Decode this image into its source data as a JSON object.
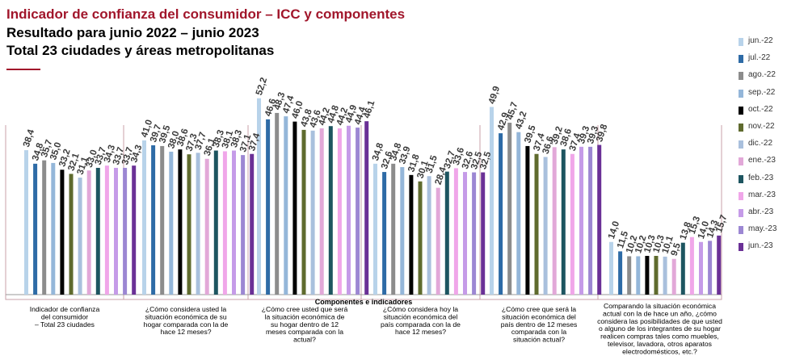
{
  "header": {
    "title": "Indicador de confianza del consumidor – ICC y componentes",
    "subtitle1": "Resultado para junio 2022 – junio 2023",
    "subtitle2": "Total 23 ciudades y áreas metropolitanas"
  },
  "chart_data": {
    "type": "bar",
    "xlabel": "Componentes e indicadores",
    "ylim": [
      0,
      55
    ],
    "legend_position": "right",
    "grid": false,
    "categories": [
      "Indicador de confianza del consumidor – Total 23 ciudades",
      "¿Cómo considera usted la situación económica de su hogar comparada con la de hace 12 meses?",
      "¿Cómo cree usted que será la situación económica de su hogar dentro de 12 meses comparada con la actual?",
      "¿Cómo considera hoy la situación económica del país comparada con la de hace 12 meses?",
      "¿Cómo cree que será la situación económica del país dentro de 12 meses comparada con la situación actual?",
      "Comparando la situación económica actual con la de hace un año, ¿cómo considera las posibilidades de que usted o alguno de los integrantes de su hogar realicen compras tales como muebles, televisor, lavadora, otros aparatos electrodomésticos, etc.?"
    ],
    "category_lines": [
      [
        "Indicador de confianza",
        "del consumidor",
        "– Total 23 ciudades"
      ],
      [
        "¿Cómo considera usted la",
        "situación económica de su",
        "hogar comparada con la de",
        "hace 12 meses?"
      ],
      [
        "¿Cómo cree usted que será",
        "la situación económica de",
        "su hogar dentro de 12",
        "meses comparada con la",
        "actual?"
      ],
      [
        "¿Cómo considera hoy la",
        "situación económica del",
        "país comparada con la de",
        "hace 12 meses?"
      ],
      [
        "¿Cómo cree que será la",
        "situación económica del",
        "país dentro de 12 meses",
        "comparada con la",
        "situación actual?"
      ],
      [
        "Comparando la situación económica",
        "actual con la de hace un año, ¿cómo",
        "considera las posibilidades de que usted",
        "o alguno de los integrantes de su hogar",
        "realicen compras tales como muebles,",
        "televisor, lavadora, otros aparatos",
        "electrodomésticos, etc.?"
      ]
    ],
    "series": [
      {
        "name": "jun.-22",
        "color": "#b8d3ea",
        "values": [
          38.4,
          41.0,
          52.2,
          34.8,
          49.9,
          14.0
        ]
      },
      {
        "name": "jul.-22",
        "color": "#2e6ba6",
        "values": [
          34.8,
          39.7,
          46.6,
          32.6,
          42.9,
          11.5
        ]
      },
      {
        "name": "ago.-22",
        "color": "#8c8c8c",
        "values": [
          35.7,
          39.5,
          48.3,
          34.8,
          45.7,
          10.2
        ]
      },
      {
        "name": "sep.-22",
        "color": "#94b6d9",
        "values": [
          35.0,
          38.0,
          47.4,
          33.9,
          43.2,
          10.2
        ]
      },
      {
        "name": "oct.-22",
        "color": "#000000",
        "values": [
          33.2,
          38.6,
          46.0,
          31.8,
          39.5,
          10.3
        ]
      },
      {
        "name": "nov.-22",
        "color": "#5f6b2e",
        "values": [
          32.1,
          37.3,
          43.8,
          30.1,
          37.4,
          10.3
        ]
      },
      {
        "name": "dic.-22",
        "color": "#a9c0dd",
        "values": [
          31.1,
          37.7,
          43.6,
          31.5,
          36.6,
          10.1
        ]
      },
      {
        "name": "ene.-23",
        "color": "#e2a8d8",
        "values": [
          33.0,
          36.1,
          44.2,
          28.4,
          39.2,
          9.5
        ]
      },
      {
        "name": "feb.-23",
        "color": "#1d5560",
        "values": [
          33.7,
          38.3,
          44.8,
          32.7,
          38.6,
          13.8
        ]
      },
      {
        "name": "mar.-23",
        "color": "#f0a6e9",
        "values": [
          34.3,
          38.1,
          44.2,
          33.6,
          37.4,
          15.3
        ]
      },
      {
        "name": "abr.-23",
        "color": "#c59be8",
        "values": [
          33.7,
          38.3,
          44.9,
          32.6,
          39.3,
          14.0
        ]
      },
      {
        "name": "may.-23",
        "color": "#9c87d3",
        "values": [
          33.7,
          37.1,
          44.4,
          32.5,
          39.3,
          14.3
        ]
      },
      {
        "name": "jun.-23",
        "color": "#6a3096",
        "values": [
          34.3,
          37.4,
          46.1,
          32.5,
          39.8,
          15.7
        ]
      }
    ]
  }
}
